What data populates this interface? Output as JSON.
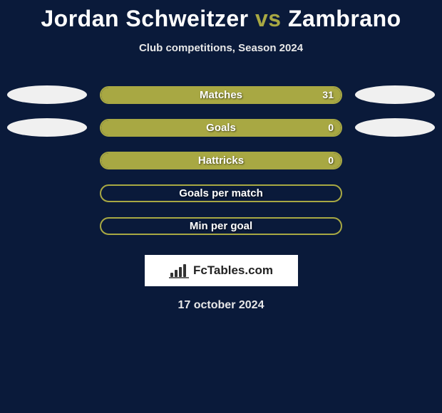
{
  "title": {
    "player1": "Jordan Schweitzer",
    "vs": "vs",
    "player2": "Zambrano"
  },
  "subtitle": "Club competitions, Season 2024",
  "chart": {
    "type": "horizontal-bar-comparison",
    "bar_border_color": "#a8a843",
    "bar_fill_color": "#a8a843",
    "background_color": "#0a1a3a",
    "left_oval_color": "#f0f0f0",
    "right_oval_color": "#f0f0f0",
    "label_color": "#ffffff",
    "label_fontsize": 15,
    "rows": [
      {
        "label": "Matches",
        "value": "31",
        "fill_percent": 100,
        "show_value": true,
        "left_oval": true,
        "right_oval": true
      },
      {
        "label": "Goals",
        "value": "0",
        "fill_percent": 100,
        "show_value": true,
        "left_oval": true,
        "right_oval": true
      },
      {
        "label": "Hattricks",
        "value": "0",
        "fill_percent": 100,
        "show_value": true,
        "left_oval": false,
        "right_oval": false
      },
      {
        "label": "Goals per match",
        "value": "",
        "fill_percent": 0,
        "show_value": false,
        "left_oval": false,
        "right_oval": false
      },
      {
        "label": "Min per goal",
        "value": "",
        "fill_percent": 0,
        "show_value": false,
        "left_oval": false,
        "right_oval": false
      }
    ]
  },
  "logo": {
    "text": "FcTables.com",
    "icon_name": "bar-chart-icon",
    "box_bg": "#ffffff",
    "text_color": "#222222"
  },
  "date": "17 october 2024"
}
